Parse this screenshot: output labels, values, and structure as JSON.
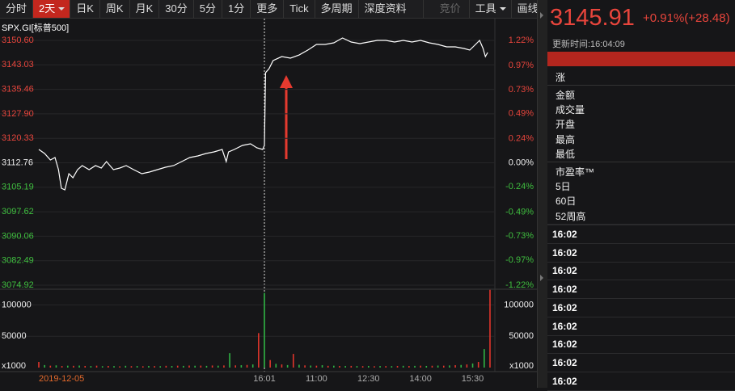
{
  "toolbar": {
    "tabs": [
      "分时",
      "2天",
      "日K",
      "周K",
      "月K",
      "30分",
      "5分",
      "1分",
      "更多",
      "Tick",
      "多周期",
      "深度资料",
      "竞价",
      "工具",
      "画线"
    ]
  },
  "chart_data": [
    {
      "type": "line",
      "title": "SPX.GI[标普500]",
      "x": [
        0,
        10,
        20,
        28,
        34,
        39,
        45,
        52,
        59,
        67,
        75,
        87,
        98,
        108,
        117,
        129,
        140,
        151,
        164,
        178,
        191,
        205,
        219,
        233,
        247,
        261,
        275,
        289,
        303,
        317,
        324,
        328,
        338,
        352,
        366,
        377,
        387,
        390,
        392,
        398,
        405,
        420,
        435,
        450,
        465,
        480,
        495,
        510,
        525,
        540,
        555,
        570,
        585,
        600,
        615,
        630,
        645,
        660,
        675,
        690,
        705,
        720,
        735,
        745,
        755,
        762,
        768,
        772,
        776
      ],
      "series": [
        {
          "color": "#ffffff",
          "values": [
            3116.88,
            3115.63,
            3113.63,
            3114.38,
            3110.64,
            3104.89,
            3104.39,
            3109.39,
            3108.14,
            3110.64,
            3111.89,
            3110.64,
            3111.89,
            3111.14,
            3113.13,
            3110.64,
            3111.14,
            3111.89,
            3110.64,
            3109.39,
            3109.89,
            3110.64,
            3111.39,
            3111.89,
            3113.13,
            3114.38,
            3114.88,
            3115.63,
            3116.13,
            3116.88,
            3113.13,
            3116.13,
            3116.88,
            3118.13,
            3118.63,
            3117.38,
            3116.88,
            3118.13,
            3140.61,
            3141.86,
            3144.36,
            3145.6,
            3145.11,
            3146.1,
            3147.6,
            3149.35,
            3149.35,
            3149.85,
            3151.35,
            3150.1,
            3149.6,
            3150.1,
            3150.6,
            3150.6,
            3150.1,
            3150.6,
            3150.1,
            3150.6,
            3149.85,
            3149.35,
            3148.6,
            3148.6,
            3148.1,
            3147.6,
            3149.35,
            3150.6,
            3148.1,
            3145.6,
            3146.85
          ]
        }
      ],
      "xlim": [
        0,
        780
      ],
      "xticks": [
        {
          "value": 0,
          "label": "2019-12-05"
        },
        {
          "value": 390,
          "label": "16:01"
        },
        {
          "value": 480,
          "label": "11:00"
        },
        {
          "value": 570,
          "label": "12:30"
        },
        {
          "value": 660,
          "label": "14:00"
        },
        {
          "value": 750,
          "label": "15:30"
        }
      ],
      "ylim": [
        3074.92,
        3150.6
      ],
      "yticks": [
        {
          "value": 3150.6,
          "label": "3150.60"
        },
        3143.03,
        3135.46,
        {
          "value": 3127.9,
          "label": "3127.90"
        },
        3120.33,
        3112.76,
        3105.19,
        3097.62,
        3090.06,
        3082.49,
        3074.92
      ],
      "y2lim": [
        -1.22,
        1.22
      ],
      "y2ticks": [
        {
          "value": 1.22,
          "label": "1.22%"
        },
        {
          "value": 0.97,
          "label": "0.97%"
        },
        {
          "value": 0.73,
          "label": "0.73%"
        },
        {
          "value": 0.49,
          "label": "0.49%"
        },
        {
          "value": 0.24,
          "label": "0.24%"
        },
        {
          "value": 0,
          "label": "0.00%"
        },
        {
          "value": -0.24,
          "label": "-0.24%"
        },
        {
          "value": -0.49,
          "label": "-0.49%"
        },
        {
          "value": -0.73,
          "label": "-0.73%"
        },
        {
          "value": -0.97,
          "label": "-0.97%"
        },
        {
          "value": -1.22,
          "label": "-1.22%"
        }
      ],
      "grid": true
    },
    {
      "type": "bar",
      "x": [
        0,
        10,
        20,
        30,
        40,
        50,
        60,
        70,
        80,
        90,
        100,
        110,
        120,
        130,
        140,
        150,
        160,
        170,
        180,
        190,
        200,
        210,
        220,
        230,
        240,
        250,
        260,
        270,
        280,
        290,
        300,
        310,
        320,
        330,
        340,
        350,
        360,
        370,
        380,
        390,
        400,
        410,
        420,
        430,
        440,
        450,
        460,
        470,
        480,
        490,
        500,
        510,
        520,
        530,
        540,
        550,
        560,
        570,
        580,
        590,
        600,
        610,
        620,
        630,
        640,
        650,
        660,
        670,
        680,
        690,
        700,
        710,
        720,
        730,
        740,
        750,
        760,
        770,
        780
      ],
      "values": [
        9000,
        4000,
        3000,
        3500,
        2500,
        3000,
        2800,
        3200,
        2600,
        2400,
        3000,
        2200,
        2600,
        2400,
        2000,
        2800,
        2300,
        2500,
        2100,
        2600,
        2400,
        2200,
        2800,
        2500,
        3000,
        2700,
        3200,
        2900,
        3100,
        2700,
        3300,
        3000,
        3400,
        23000,
        3500,
        3800,
        4200,
        5000,
        55000,
        119000,
        12000,
        6000,
        5000,
        4000,
        21800,
        4500,
        3500,
        3200,
        3000,
        3800,
        2800,
        3000,
        2600,
        2500,
        2700,
        2400,
        2300,
        2600,
        2200,
        2500,
        2400,
        2300,
        2600,
        2800,
        2500,
        2700,
        3000,
        2600,
        2900,
        3200,
        3000,
        3400,
        3800,
        4200,
        5000,
        6500,
        9000,
        29500,
        124000
      ],
      "colors": [
        "#e0352b",
        "#2fb344"
      ],
      "xlim": [
        0,
        780
      ],
      "ylim": [
        0,
        125000
      ],
      "yticks": [
        100000,
        50000
      ],
      "unit": "x1000"
    }
  ],
  "quote": {
    "price": 3145.91,
    "change": "+0.91%(+28.48)",
    "update_time": "更新时间:16:04:09",
    "fields": [
      "涨",
      "金额",
      "成交量",
      "开盘",
      "最高",
      "最低"
    ],
    "fields2": [
      "市盈率™",
      "5日",
      "60日",
      "52周高"
    ],
    "ticks": [
      "16:02",
      "16:02",
      "16:02",
      "16:02",
      "16:02",
      "16:02",
      "16:02",
      "16:02",
      "16:02"
    ]
  }
}
